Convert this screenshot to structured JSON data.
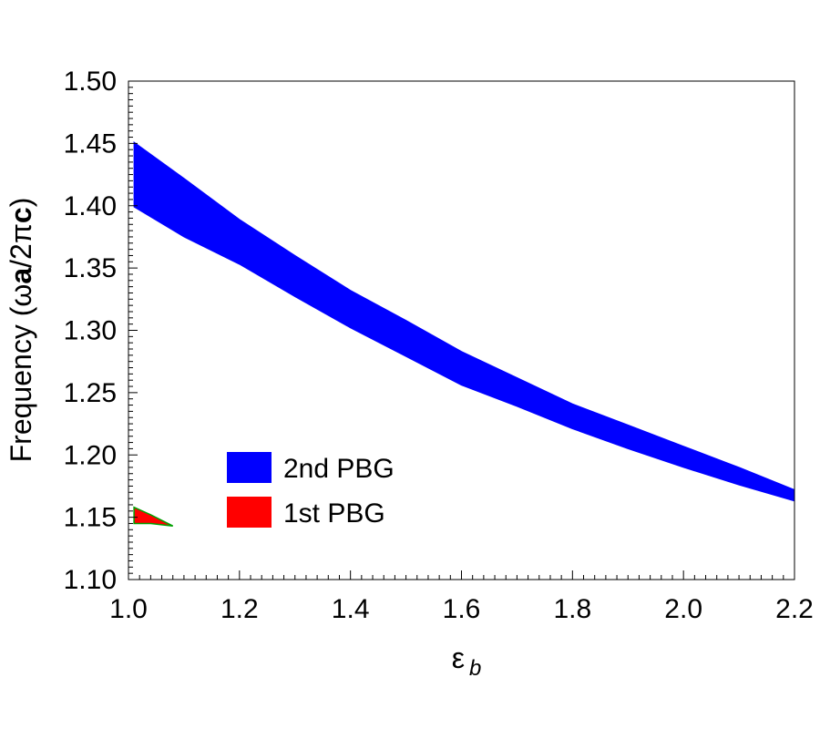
{
  "chart_data": {
    "type": "area",
    "title": "",
    "xlabel": "ε",
    "xlabel_sub": "b",
    "ylabel_parts": [
      "Frequency (",
      "ω",
      "a",
      "/2",
      "π",
      "c",
      ")"
    ],
    "xlim": [
      1.0,
      2.2
    ],
    "ylim": [
      1.1,
      1.5
    ],
    "xticks": [
      "1.0",
      "1.2",
      "1.4",
      "1.6",
      "1.8",
      "2.0",
      "2.2"
    ],
    "yticks": [
      "1.10",
      "1.15",
      "1.20",
      "1.25",
      "1.30",
      "1.35",
      "1.40",
      "1.45",
      "1.50"
    ],
    "grid": false,
    "legend_position": "bottom-left",
    "series": [
      {
        "name": "2nd PBG",
        "color": "#0000ff",
        "x": [
          1.01,
          1.1,
          1.2,
          1.3,
          1.4,
          1.5,
          1.6,
          1.7,
          1.8,
          1.9,
          2.0,
          2.1,
          2.2
        ],
        "upper": [
          1.451,
          1.422,
          1.389,
          1.36,
          1.332,
          1.308,
          1.283,
          1.262,
          1.241,
          1.224,
          1.207,
          1.19,
          1.172
        ],
        "lower": [
          1.399,
          1.375,
          1.353,
          1.327,
          1.302,
          1.279,
          1.256,
          1.239,
          1.221,
          1.205,
          1.19,
          1.176,
          1.163
        ]
      },
      {
        "name": "1st PBG",
        "color": "#ff0000",
        "edge_color": "#00a000",
        "x": [
          1.01,
          1.04,
          1.08
        ],
        "upper": [
          1.158,
          1.152,
          1.143
        ],
        "lower": [
          1.145,
          1.145,
          1.143
        ]
      }
    ]
  }
}
